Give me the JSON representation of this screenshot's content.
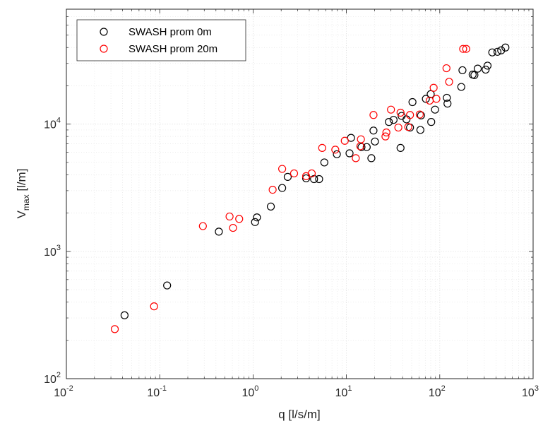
{
  "chart_data": {
    "type": "scatter",
    "title": "",
    "xlabel": "q [l/s/m]",
    "ylabel_main": "V",
    "ylabel_sub": "max",
    "ylabel_unit": " [l/m]",
    "xscale": "log",
    "yscale": "log",
    "xlim": [
      0.01,
      1000
    ],
    "ylim": [
      100,
      80000
    ],
    "grid": true,
    "minor_grid": true,
    "legend_position": "top-left",
    "x_ticks": [
      {
        "base": "10",
        "exp": "-2"
      },
      {
        "base": "10",
        "exp": "-1"
      },
      {
        "base": "10",
        "exp": "0"
      },
      {
        "base": "10",
        "exp": "1"
      },
      {
        "base": "10",
        "exp": "2"
      },
      {
        "base": "10",
        "exp": "3"
      }
    ],
    "y_ticks": [
      {
        "base": "10",
        "exp": "2"
      },
      {
        "base": "10",
        "exp": "3"
      },
      {
        "base": "10",
        "exp": "4"
      }
    ],
    "series": [
      {
        "name": "SWASH prom 0m",
        "color": "#000000",
        "points": [
          [
            0.042,
            315
          ],
          [
            0.12,
            540
          ],
          [
            0.43,
            1430
          ],
          [
            1.05,
            1700
          ],
          [
            1.1,
            1850
          ],
          [
            1.55,
            2250
          ],
          [
            2.05,
            3150
          ],
          [
            2.35,
            3850
          ],
          [
            3.7,
            3750
          ],
          [
            4.5,
            3700
          ],
          [
            5.1,
            3700
          ],
          [
            5.8,
            5000
          ],
          [
            7.9,
            5800
          ],
          [
            10.8,
            5900
          ],
          [
            11.2,
            7800
          ],
          [
            14.5,
            6600
          ],
          [
            16.5,
            6600
          ],
          [
            18.5,
            5400
          ],
          [
            19.5,
            8900
          ],
          [
            20.2,
            7300
          ],
          [
            28.5,
            10400
          ],
          [
            32,
            10800
          ],
          [
            38,
            6500
          ],
          [
            39,
            11600
          ],
          [
            44,
            10900
          ],
          [
            48,
            9400
          ],
          [
            51,
            14900
          ],
          [
            62,
            9000
          ],
          [
            63,
            11700
          ],
          [
            71,
            15800
          ],
          [
            80,
            17200
          ],
          [
            81,
            10400
          ],
          [
            89,
            13000
          ],
          [
            119,
            16100
          ],
          [
            121,
            14500
          ],
          [
            170,
            19600
          ],
          [
            175,
            26500
          ],
          [
            225,
            24500
          ],
          [
            235,
            24300
          ],
          [
            255,
            27300
          ],
          [
            310,
            26800
          ],
          [
            325,
            28800
          ],
          [
            365,
            36600
          ],
          [
            415,
            37000
          ],
          [
            455,
            38000
          ],
          [
            505,
            40000
          ]
        ]
      },
      {
        "name": "SWASH prom 20m",
        "color": "#ff0000",
        "points": [
          [
            0.033,
            245
          ],
          [
            0.087,
            370
          ],
          [
            0.29,
            1580
          ],
          [
            0.56,
            1880
          ],
          [
            0.61,
            1530
          ],
          [
            0.71,
            1800
          ],
          [
            1.62,
            3050
          ],
          [
            2.05,
            4450
          ],
          [
            2.75,
            4100
          ],
          [
            3.7,
            3900
          ],
          [
            4.25,
            4100
          ],
          [
            5.5,
            6500
          ],
          [
            7.6,
            6300
          ],
          [
            9.6,
            7400
          ],
          [
            12.6,
            5400
          ],
          [
            14.1,
            6700
          ],
          [
            14.3,
            7600
          ],
          [
            19.5,
            11800
          ],
          [
            26.2,
            8000
          ],
          [
            26.8,
            8600
          ],
          [
            30,
            13000
          ],
          [
            36,
            9400
          ],
          [
            38,
            12300
          ],
          [
            46,
            9500
          ],
          [
            48,
            11800
          ],
          [
            61,
            11900
          ],
          [
            78,
            15300
          ],
          [
            86,
            19300
          ],
          [
            92,
            15800
          ],
          [
            118,
            27500
          ],
          [
            126,
            21500
          ],
          [
            178,
            39000
          ],
          [
            192,
            39000
          ]
        ]
      }
    ]
  }
}
